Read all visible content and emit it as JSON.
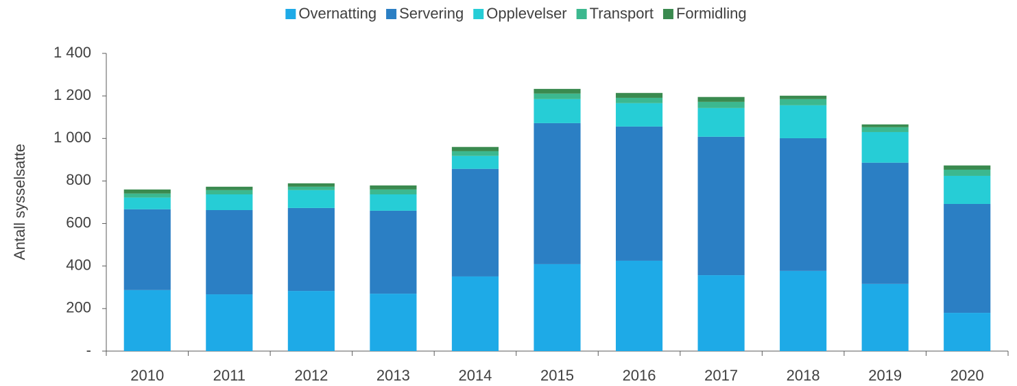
{
  "chart_data": {
    "type": "stacked_bar",
    "y_label": "Antall sysselsatte",
    "categories": [
      "2010",
      "2011",
      "2012",
      "2013",
      "2014",
      "2015",
      "2016",
      "2017",
      "2018",
      "2019",
      "2020"
    ],
    "series": [
      {
        "name": "Overnatting",
        "color": "#1eaae7",
        "values": [
          287,
          267,
          283,
          270,
          351,
          409,
          425,
          357,
          377,
          316,
          180
        ]
      },
      {
        "name": "Servering",
        "color": "#2b7fc4",
        "values": [
          380,
          396,
          390,
          390,
          506,
          663,
          631,
          651,
          624,
          570,
          512
        ]
      },
      {
        "name": "Opplevelser",
        "color": "#26cdd6",
        "values": [
          55,
          74,
          84,
          77,
          61,
          113,
          110,
          135,
          155,
          144,
          132
        ]
      },
      {
        "name": "Transport",
        "color": "#3cb88f",
        "values": [
          19,
          20,
          16,
          23,
          22,
          26,
          25,
          29,
          29,
          23,
          29
        ]
      },
      {
        "name": "Formidling",
        "color": "#3a8a4f",
        "values": [
          19,
          16,
          16,
          19,
          20,
          22,
          23,
          23,
          16,
          13,
          20
        ]
      }
    ],
    "ylim": [
      0,
      1400
    ],
    "yticks": [
      {
        "value": 0,
        "label": "-"
      },
      200,
      400,
      600,
      800,
      {
        "value": 1000,
        "label": "1 000"
      },
      {
        "value": 1200,
        "label": "1 200"
      },
      {
        "value": 1400,
        "label": "1 400"
      }
    ],
    "legend": "top",
    "grid": false
  }
}
